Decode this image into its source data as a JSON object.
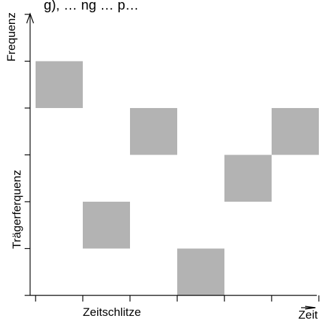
{
  "header_text": "g), … ng … p…",
  "labels": {
    "y_axis_top": "Frequenz",
    "y_axis_middle": "Trägerferquenz",
    "x_axis_center": "Zeitschlitze",
    "x_axis_right": "Zeit"
  },
  "colors": {
    "block_fill": "#b3b3b3",
    "axis": "#000000"
  },
  "grid": {
    "time_slots": 6,
    "frequency_bands": 6
  },
  "hops": [
    {
      "slot": 1,
      "band": 5
    },
    {
      "slot": 2,
      "band": 2
    },
    {
      "slot": 3,
      "band": 4
    },
    {
      "slot": 4,
      "band": 1
    },
    {
      "slot": 5,
      "band": 3
    },
    {
      "slot": 6,
      "band": 4
    }
  ]
}
